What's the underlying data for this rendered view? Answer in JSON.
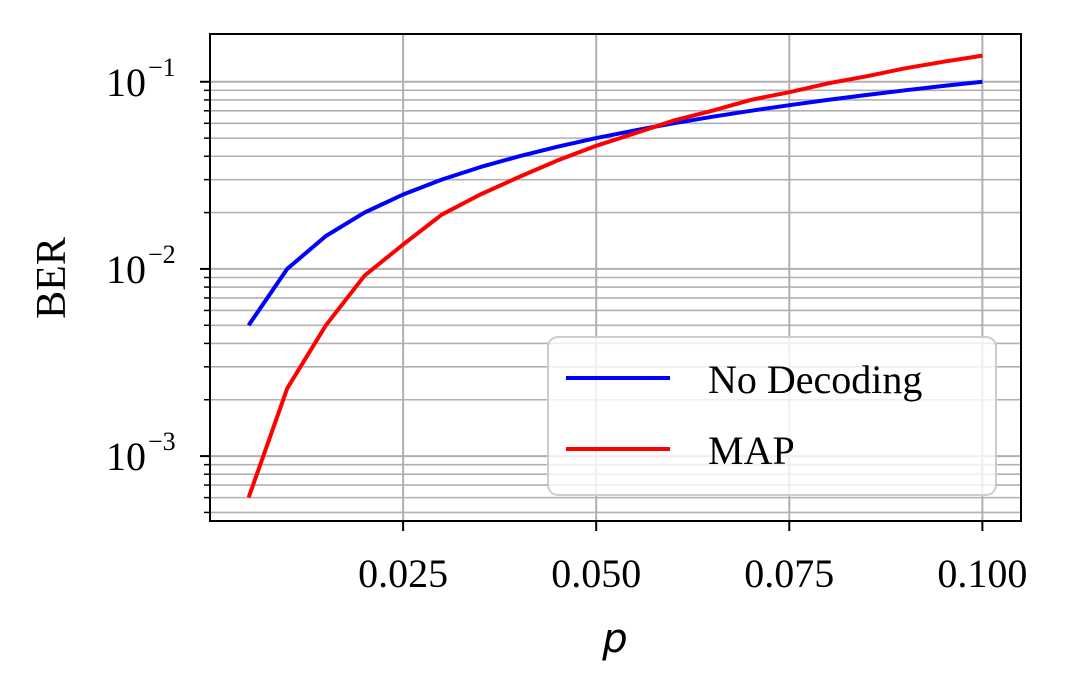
{
  "chart_data": {
    "type": "line",
    "xlabel": "p",
    "ylabel": "BER",
    "xlim": [
      0.0,
      0.105
    ],
    "ylim": [
      0.00045,
      0.18
    ],
    "yscale": "log",
    "grid": "on (major and minor)",
    "legend_position": "lower-right",
    "x_ticks": [
      {
        "value": 0.025,
        "label": "0.025"
      },
      {
        "value": 0.05,
        "label": "0.050"
      },
      {
        "value": 0.075,
        "label": "0.075"
      },
      {
        "value": 0.1,
        "label": "0.100"
      }
    ],
    "y_ticks": [
      {
        "value": 0.001,
        "base": "10",
        "exp": "−3"
      },
      {
        "value": 0.01,
        "base": "10",
        "exp": "−2"
      },
      {
        "value": 0.1,
        "base": "10",
        "exp": "−1"
      }
    ],
    "series": [
      {
        "name": "No Decoding",
        "color": "#0000ff",
        "x": [
          0.005,
          0.01,
          0.015,
          0.02,
          0.025,
          0.03,
          0.035,
          0.04,
          0.045,
          0.05,
          0.055,
          0.06,
          0.065,
          0.07,
          0.075,
          0.08,
          0.085,
          0.09,
          0.095,
          0.1
        ],
        "y": [
          0.005,
          0.01,
          0.015,
          0.02,
          0.025,
          0.03,
          0.035,
          0.04,
          0.045,
          0.05,
          0.055,
          0.06,
          0.065,
          0.07,
          0.075,
          0.08,
          0.085,
          0.09,
          0.095,
          0.1
        ]
      },
      {
        "name": "MAP",
        "color": "#ff0000",
        "x": [
          0.005,
          0.01,
          0.015,
          0.02,
          0.025,
          0.03,
          0.035,
          0.04,
          0.045,
          0.05,
          0.055,
          0.06,
          0.065,
          0.07,
          0.075,
          0.08,
          0.085,
          0.09,
          0.095,
          0.1
        ],
        "y": [
          0.0006,
          0.0023,
          0.005,
          0.0092,
          0.0135,
          0.0195,
          0.025,
          0.031,
          0.038,
          0.0455,
          0.053,
          0.062,
          0.07,
          0.08,
          0.088,
          0.098,
          0.107,
          0.118,
          0.128,
          0.138
        ]
      }
    ]
  }
}
